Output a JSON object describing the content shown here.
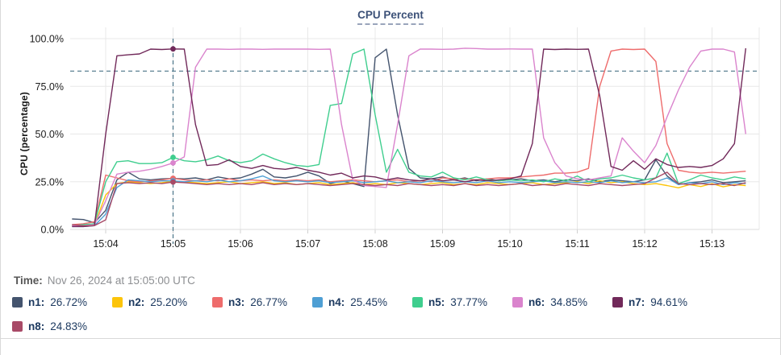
{
  "title": "CPU Percent",
  "time": {
    "prefix": "Time:",
    "value": "Nov 26, 2024 at 15:05:00 UTC"
  },
  "legend": [
    {
      "id": "n1",
      "label": "n1:",
      "value": "26.72%",
      "color": "#44546e"
    },
    {
      "id": "n2",
      "label": "n2:",
      "value": "25.20%",
      "color": "#fcc40a"
    },
    {
      "id": "n3",
      "label": "n3:",
      "value": "26.77%",
      "color": "#ee6c6c"
    },
    {
      "id": "n4",
      "label": "n4:",
      "value": "25.45%",
      "color": "#4e9fd4"
    },
    {
      "id": "n5",
      "label": "n5:",
      "value": "37.77%",
      "color": "#3fce8e"
    },
    {
      "id": "n6",
      "label": "n6:",
      "value": "34.85%",
      "color": "#da84cd"
    },
    {
      "id": "n7",
      "label": "n7:",
      "value": "94.61%",
      "color": "#71295a"
    },
    {
      "id": "n8",
      "label": "n8:",
      "value": "24.83%",
      "color": "#a84a67"
    }
  ],
  "chart_data": {
    "type": "line",
    "title": "CPU Percent",
    "xlabel": "",
    "ylabel": "CPU (percentage)",
    "ylim": [
      0,
      100
    ],
    "grid": true,
    "threshold_percent": 83,
    "threshold_color": "#4a7488",
    "crosshair_color": "#4a7488",
    "grid_color": "#e8e8e8",
    "marker_time": "15:05:00",
    "x_start": "15:03:30",
    "x_step_seconds": 10,
    "yticks": [
      {
        "label": "0.0%",
        "value": 0
      },
      {
        "label": "25.0%",
        "value": 25
      },
      {
        "label": "50.0%",
        "value": 50
      },
      {
        "label": "75.0%",
        "value": 75
      },
      {
        "label": "100.0%",
        "value": 100
      }
    ],
    "xticks": [
      {
        "label": "15:04",
        "time": "15:04:00"
      },
      {
        "label": "15:05",
        "time": "15:05:00"
      },
      {
        "label": "15:06",
        "time": "15:06:00"
      },
      {
        "label": "15:07",
        "time": "15:07:00"
      },
      {
        "label": "15:08",
        "time": "15:08:00"
      },
      {
        "label": "15:09",
        "time": "15:09:00"
      },
      {
        "label": "15:10",
        "time": "15:10:00"
      },
      {
        "label": "15:11",
        "time": "15:11:00"
      },
      {
        "label": "15:12",
        "time": "15:12:00"
      },
      {
        "label": "15:13",
        "time": "15:13:00"
      }
    ],
    "series": [
      {
        "name": "n1",
        "color": "#44546e",
        "marker_value": 26.72,
        "values": [
          5.5,
          5.2,
          3.5,
          10,
          26,
          30,
          26.5,
          26,
          26.5,
          26.72,
          26.5,
          27,
          26,
          27.5,
          26.5,
          27,
          29,
          31.5,
          27.5,
          27,
          28,
          30,
          28,
          24,
          25.5,
          24,
          22.5,
          90,
          94.5,
          60,
          32,
          27,
          26.5,
          27.5,
          26,
          27,
          25.5,
          26.5,
          25.5,
          26,
          26.5,
          25.5,
          26,
          25,
          26,
          25.5,
          26.5,
          25,
          26,
          25.5,
          25,
          26,
          36.5,
          28,
          23.5,
          24.5,
          25,
          26,
          24.5,
          25,
          25.5
        ]
      },
      {
        "name": "n2",
        "color": "#fcc40a",
        "marker_value": 25.2,
        "values": [
          2,
          2,
          2.5,
          18,
          24,
          25,
          24.5,
          24,
          24.5,
          25.2,
          24.8,
          24.5,
          24,
          24.5,
          25,
          24,
          24.5,
          25,
          24,
          24.5,
          23.5,
          24,
          24.5,
          23.5,
          24,
          24.5,
          23.5,
          24,
          23.5,
          24.5,
          24,
          23.5,
          24,
          24.5,
          23.5,
          24,
          23.5,
          24.5,
          24,
          23.5,
          24,
          24.5,
          23.5,
          24,
          24.5,
          25,
          24,
          25.5,
          24.5,
          25,
          24,
          23.5,
          24,
          23,
          21.8,
          23.5,
          22.5,
          24,
          22.3,
          23.5,
          23
        ]
      },
      {
        "name": "n3",
        "color": "#ee6c6c",
        "marker_value": 26.77,
        "values": [
          2.5,
          3,
          4,
          28.5,
          27,
          25.5,
          25,
          25.5,
          26,
          26.77,
          26,
          25.5,
          26,
          25.5,
          26.5,
          25.5,
          26,
          25.5,
          26,
          25.5,
          26,
          25.5,
          26,
          25,
          25.5,
          26,
          25.5,
          25,
          25.5,
          26,
          25,
          25.5,
          25,
          27,
          26.5,
          26.5,
          26,
          26.5,
          27,
          27,
          27.5,
          28,
          28.5,
          29.5,
          29.5,
          30,
          32,
          75,
          93.5,
          94.5,
          94.3,
          94.5,
          88,
          45,
          31,
          30,
          29.5,
          30,
          29.5,
          30,
          30.5
        ]
      },
      {
        "name": "n4",
        "color": "#4e9fd4",
        "marker_value": 25.45,
        "values": [
          1.5,
          1.5,
          2,
          8,
          22,
          26,
          25.5,
          25,
          25.5,
          25.45,
          25,
          25.5,
          25,
          26,
          25,
          25.5,
          26.5,
          28,
          25.5,
          25,
          25.5,
          25,
          25.5,
          24.5,
          25,
          25.5,
          24.5,
          25,
          25.5,
          24.5,
          25,
          24.5,
          25.5,
          25,
          24.5,
          25,
          24.5,
          25.5,
          24.5,
          25,
          24.5,
          25,
          25.5,
          24.5,
          25,
          24.5,
          25,
          24.5,
          25.5,
          24.5,
          25,
          24.5,
          25,
          27,
          23.5,
          24.5,
          24,
          25,
          23.5,
          24.5,
          24
        ]
      },
      {
        "name": "n5",
        "color": "#3fce8e",
        "marker_value": 37.77,
        "values": [
          2,
          2.5,
          3,
          25,
          35.5,
          36,
          34.5,
          34.5,
          35,
          37.77,
          36,
          35.5,
          36.5,
          38.5,
          36,
          35,
          36,
          39.5,
          37,
          35,
          33.5,
          33,
          34,
          65,
          66,
          92,
          94.5,
          60,
          30,
          42,
          30,
          28,
          27.5,
          30,
          27,
          26,
          27.5,
          26,
          25.5,
          26,
          25.5,
          26,
          25,
          26.5,
          25.5,
          28,
          25,
          26.5,
          27,
          28.5,
          27,
          26,
          27,
          40,
          24,
          26,
          28.5,
          27,
          26,
          27.5,
          26.5
        ]
      },
      {
        "name": "n6",
        "color": "#da84cd",
        "marker_value": 34.85,
        "values": [
          2,
          2,
          2.5,
          15,
          29,
          30,
          30.5,
          31.5,
          33,
          34.85,
          38,
          85,
          94.5,
          94.5,
          94.4,
          94.5,
          94.5,
          94.4,
          94.5,
          94.5,
          94.5,
          94.5,
          94.4,
          94.5,
          55,
          26,
          23,
          22.5,
          22,
          55,
          91,
          94.5,
          94.5,
          94.4,
          94.5,
          95,
          94.8,
          94.5,
          94.5,
          94.6,
          94.5,
          94.5,
          48,
          35,
          28,
          26.5,
          26,
          27,
          28,
          48,
          41,
          35,
          44,
          59,
          73,
          85,
          93.5,
          94.5,
          94.5,
          93,
          50
        ]
      },
      {
        "name": "n7",
        "color": "#71295a",
        "marker_value": 94.61,
        "values": [
          1.5,
          1.5,
          2,
          50,
          91,
          91.5,
          92,
          94.5,
          94.3,
          94.61,
          94.5,
          55,
          33.5,
          34,
          36.5,
          33,
          32,
          33.5,
          32,
          31.5,
          32.5,
          31,
          30,
          28.5,
          29.5,
          27,
          28,
          27.5,
          26,
          27,
          26,
          25.5,
          26.5,
          25.5,
          26,
          25,
          26,
          25.5,
          26,
          26.5,
          28,
          45,
          94.5,
          94.3,
          94.5,
          94.4,
          94.5,
          70,
          33,
          31,
          36,
          31.5,
          37,
          34,
          32.5,
          33,
          32.5,
          33.5,
          37,
          45,
          95
        ]
      },
      {
        "name": "n8",
        "color": "#a84a67",
        "marker_value": 24.83,
        "values": [
          2.5,
          2,
          2,
          5,
          24,
          24.5,
          24,
          24.5,
          24,
          24.83,
          24.5,
          24,
          23.5,
          24,
          23.5,
          24,
          23.5,
          24.5,
          23.5,
          24,
          23.5,
          24,
          23.5,
          23,
          23.5,
          24,
          23.5,
          23,
          23.5,
          23,
          24,
          23.5,
          23,
          23.5,
          23,
          24,
          23,
          23.5,
          23,
          23.5,
          24,
          23,
          23.5,
          23,
          24,
          23.5,
          23,
          24,
          23.5,
          23,
          23.5,
          24,
          27,
          30,
          24,
          23.5,
          24,
          23.5,
          24,
          23,
          24.5
        ]
      }
    ]
  }
}
